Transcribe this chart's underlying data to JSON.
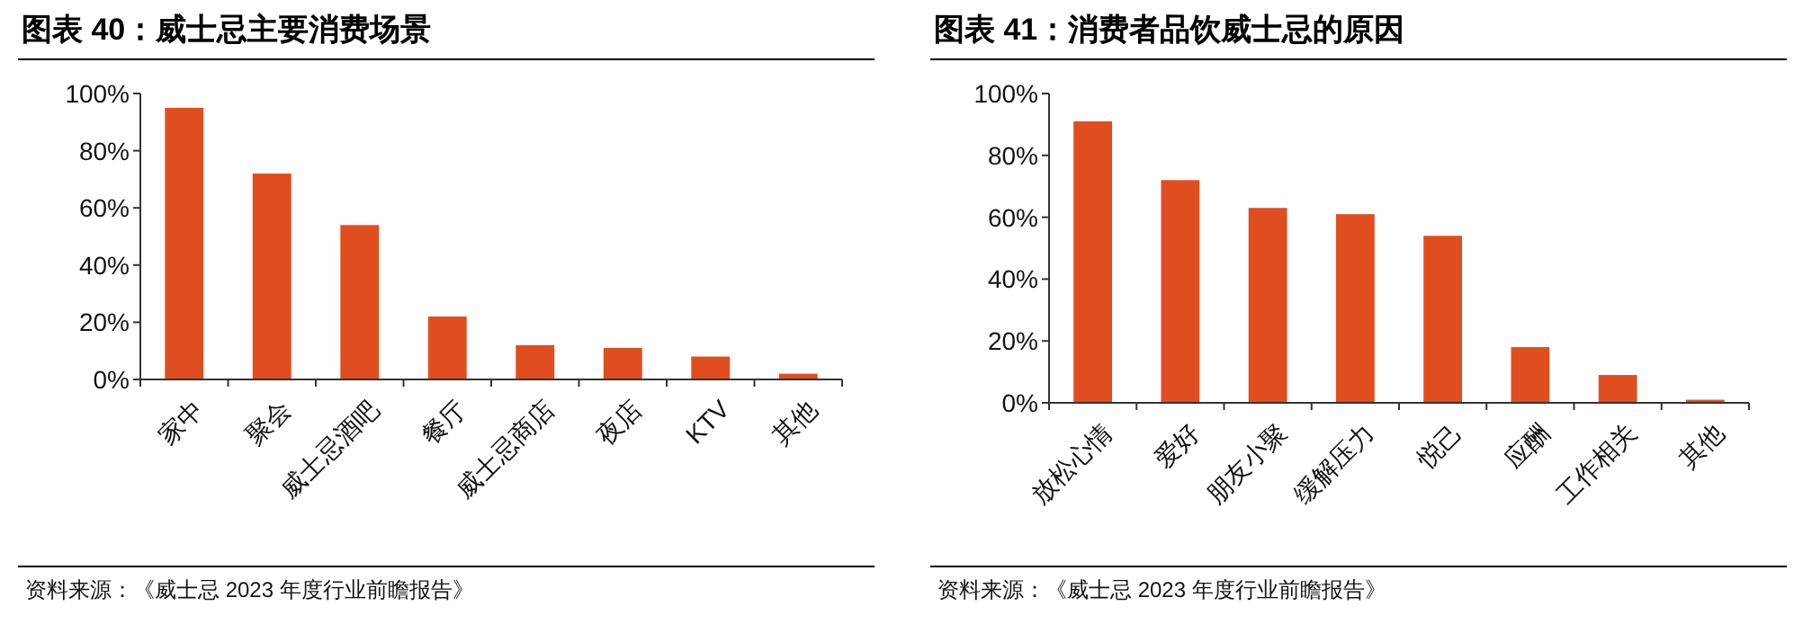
{
  "chart_data": [
    {
      "type": "bar",
      "title": "图表 40：威士忌主要消费场景",
      "categories": [
        "家中",
        "聚会",
        "威士忌酒吧",
        "餐厅",
        "威士忌商店",
        "夜店",
        "KTV",
        "其他"
      ],
      "values": [
        95,
        72,
        54,
        22,
        12,
        11,
        8,
        2
      ],
      "color": "#e04e1f",
      "ylim": [
        0,
        100
      ],
      "yticks": [
        {
          "value": 0,
          "label": "0%"
        },
        {
          "value": 20,
          "label": "20%"
        },
        {
          "value": 40,
          "label": "40%"
        },
        {
          "value": 60,
          "label": "60%"
        },
        {
          "value": 80,
          "label": "80%"
        },
        {
          "value": 100,
          "label": "100%"
        }
      ],
      "annotations": [
        "资料来源：《威士忌 2023 年度行业前瞻报告》"
      ]
    },
    {
      "type": "bar",
      "title": "图表 41：消费者品饮威士忌的原因",
      "categories": [
        "放松心情",
        "爱好",
        "朋友小聚",
        "缓解压力",
        "悦己",
        "应酬",
        "工作相关",
        "其他"
      ],
      "values": [
        91,
        72,
        63,
        61,
        54,
        18,
        9,
        1
      ],
      "color": "#e04e1f",
      "ylim": [
        0,
        100
      ],
      "yticks": [
        {
          "value": 0,
          "label": "0%"
        },
        {
          "value": 20,
          "label": "20%"
        },
        {
          "value": 40,
          "label": "40%"
        },
        {
          "value": 60,
          "label": "60%"
        },
        {
          "value": 80,
          "label": "80%"
        },
        {
          "value": 100,
          "label": "100%"
        }
      ],
      "annotations": [
        "资料来源：《威士忌 2023 年度行业前瞻报告》"
      ]
    }
  ]
}
